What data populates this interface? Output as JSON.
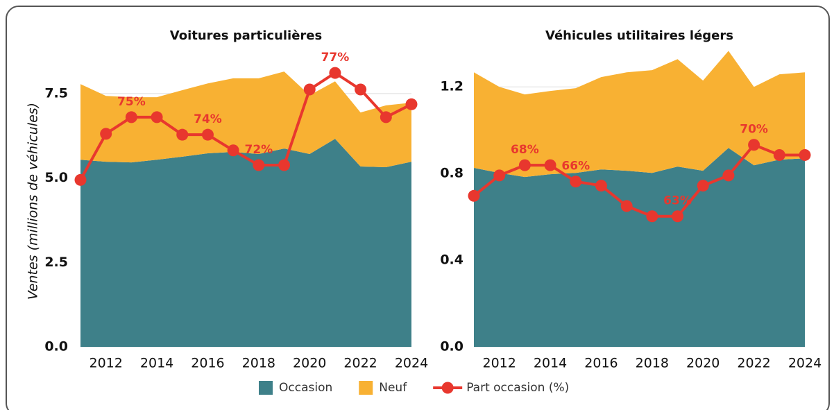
{
  "chart_data": [
    {
      "type": "area",
      "title": "Voitures particulières",
      "ylabel": "Ventes (millions de véhicules)",
      "x": [
        2011,
        2012,
        2013,
        2014,
        2015,
        2016,
        2017,
        2018,
        2019,
        2020,
        2021,
        2022,
        2023,
        2024
      ],
      "xlim": [
        2011,
        2024
      ],
      "xticks": [
        2012,
        2014,
        2016,
        2018,
        2020,
        2022,
        2024
      ],
      "ylim": [
        0,
        8.4
      ],
      "yticks": [
        {
          "value": 0,
          "label": "0.0"
        },
        2.5,
        {
          "value": 5,
          "label": "5.0"
        },
        7.5
      ],
      "y2lim": [
        62.15,
        77.53
      ],
      "stacked": true,
      "grid": true,
      "series": [
        {
          "name": "Occasion",
          "color": "#3e8089",
          "values": [
            5.54,
            5.48,
            5.46,
            5.54,
            5.63,
            5.73,
            5.77,
            5.71,
            5.87,
            5.71,
            6.16,
            5.34,
            5.32,
            5.48
          ]
        },
        {
          "name": "Neuf",
          "color": "#f8b133",
          "values": [
            2.24,
            1.95,
            1.93,
            1.85,
            1.97,
            2.07,
            2.18,
            2.24,
            2.28,
            1.74,
            1.7,
            1.6,
            1.83,
            1.75
          ]
        },
        {
          "name": "Part occasion (%)",
          "type": "line",
          "axis": "y2",
          "color": "#e8372e",
          "values": [
            71.2,
            73.7,
            74.6,
            74.6,
            73.65,
            73.65,
            72.8,
            72,
            72,
            76.1,
            77,
            76.1,
            74.6,
            75.3
          ],
          "value_labels": [
            null,
            null,
            "75%",
            null,
            null,
            "74%",
            null,
            "72%",
            null,
            null,
            "77%",
            null,
            null,
            null
          ]
        }
      ]
    },
    {
      "type": "area",
      "title": "Véhicules utilitaires légers",
      "x": [
        2011,
        2012,
        2013,
        2014,
        2015,
        2016,
        2017,
        2018,
        2019,
        2020,
        2021,
        2022,
        2023,
        2024
      ],
      "xlim": [
        2011,
        2024
      ],
      "xticks": [
        2012,
        2014,
        2016,
        2018,
        2020,
        2022,
        2024
      ],
      "ylim": [
        0,
        1.38
      ],
      "yticks": [
        {
          "value": 0,
          "label": "0.0"
        },
        0.4,
        0.8,
        1.2
      ],
      "y2lim": [
        50.2,
        79.5
      ],
      "stacked": true,
      "grid": true,
      "series": [
        {
          "color": "#3e8089",
          "values": [
            0.826,
            0.803,
            0.784,
            0.797,
            0.803,
            0.819,
            0.813,
            0.803,
            0.832,
            0.813,
            0.918,
            0.838,
            0.864,
            0.87
          ]
        },
        {
          "color": "#f8b133",
          "values": [
            0.441,
            0.397,
            0.381,
            0.384,
            0.391,
            0.426,
            0.454,
            0.474,
            0.496,
            0.416,
            0.448,
            0.362,
            0.394,
            0.397
          ]
        },
        {
          "type": "line",
          "axis": "y2",
          "color": "#e8372e",
          "values": [
            65,
            67,
            68,
            68,
            66.4,
            66,
            64,
            63,
            63,
            66,
            67,
            70,
            69,
            69
          ],
          "value_labels": [
            null,
            null,
            "68%",
            null,
            "66%",
            null,
            null,
            null,
            "63%",
            null,
            null,
            "70%",
            null,
            null
          ]
        }
      ]
    }
  ]
}
